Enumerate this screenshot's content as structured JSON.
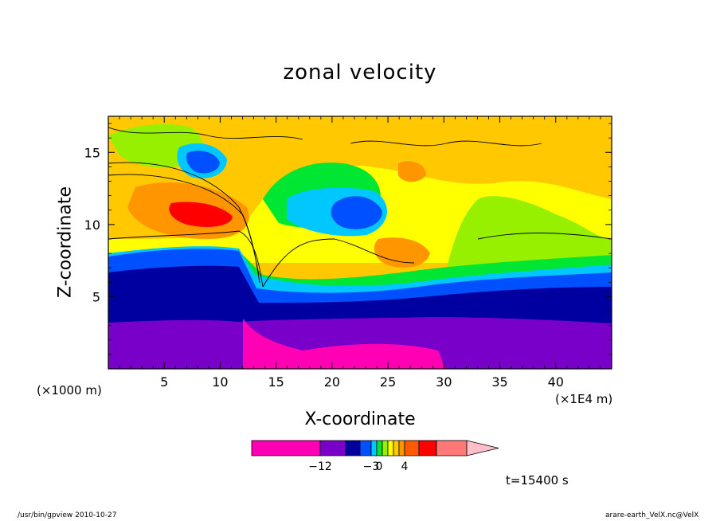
{
  "chart_data": {
    "type": "heatmap",
    "title": "zonal velocity",
    "xlabel": "X-coordinate",
    "ylabel": "Z-coordinate",
    "x_unit_label": "(×1000 m)",
    "x_scale_label": "(×1E4 m)",
    "xlim": [
      0,
      45
    ],
    "ylim": [
      0,
      17.5
    ],
    "x_ticks": [
      5,
      10,
      15,
      20,
      25,
      30,
      35,
      40
    ],
    "y_ticks": [
      5,
      10,
      15
    ],
    "x_tick_labels": [
      "5",
      "10",
      "15",
      "20",
      "25",
      "30",
      "35",
      "40"
    ],
    "y_tick_labels": [
      "5",
      "10",
      "15"
    ],
    "grid": false,
    "colorbar": {
      "orientation": "horizontal",
      "position": "bottom",
      "shown_labels": [
        {
          "value": -12,
          "text": "−12"
        },
        {
          "value": -3,
          "text": "−3"
        },
        {
          "value": 0,
          "text": "0"
        },
        {
          "value": 4,
          "text": "4"
        }
      ],
      "colors": [
        "#ff00b4",
        "#7800c8",
        "#0000a0",
        "#0050ff",
        "#00c8ff",
        "#00e632",
        "#96f000",
        "#ffff00",
        "#ffc800",
        "#ff9600",
        "#ff5a00",
        "#ff0000",
        "#ff7878",
        "#ffbec8"
      ]
    },
    "bands": [
      {
        "name": "magenta-layer",
        "color": "#ff00b4",
        "approx_z_range": [
          0,
          1.5
        ]
      },
      {
        "name": "purple-layer",
        "color": "#7800c8",
        "approx_z_range": [
          1.5,
          3.3
        ]
      },
      {
        "name": "dark-blue-layer",
        "color": "#0000a0",
        "approx_z_range": [
          3.3,
          6.5
        ]
      },
      {
        "name": "blue-layer",
        "color": "#0050ff",
        "approx_z_range": [
          6.5,
          7.5
        ]
      },
      {
        "name": "green-layer",
        "color": "#00e632",
        "approx_z_range": [
          7.5,
          8.5
        ]
      },
      {
        "name": "yellow-orange-upper",
        "color": "#ffc800",
        "approx_z_range": [
          8.5,
          17.5
        ]
      }
    ]
  },
  "annotations": {
    "time": "t=15400 s",
    "footer_left": "/usr/bin/gpview   2010-10-27",
    "footer_right": "arare-earth_VelX.nc@VelX"
  },
  "colors": {
    "frame": "#000000",
    "background": "#ffffff"
  }
}
